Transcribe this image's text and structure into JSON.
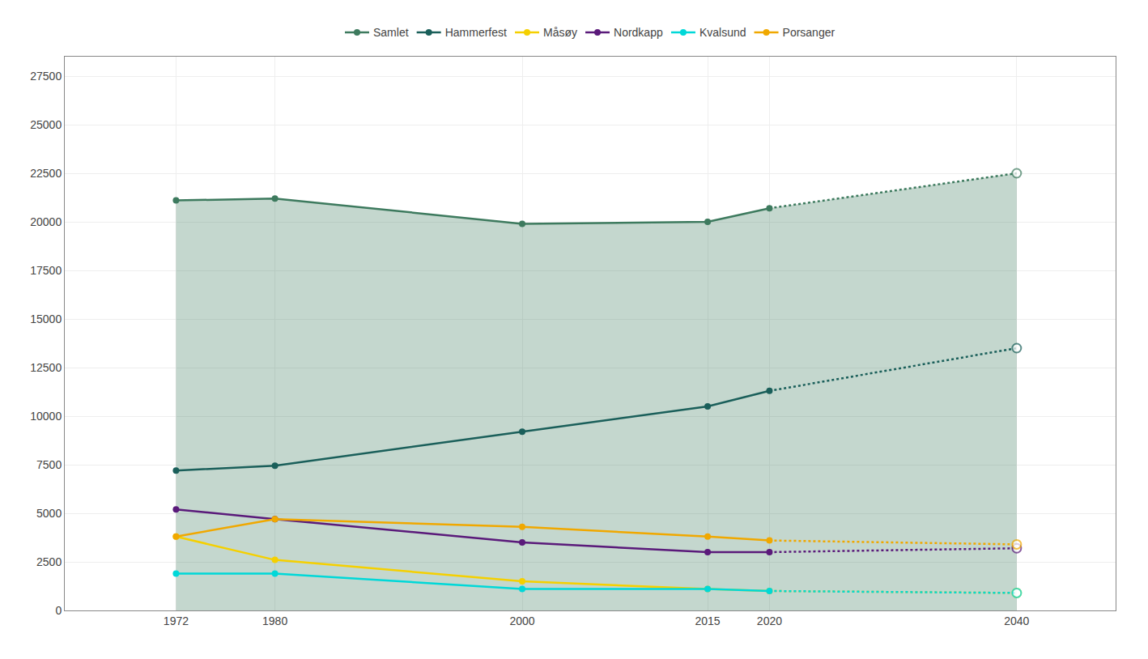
{
  "chart_data": {
    "type": "line",
    "x": [
      1972,
      1980,
      2000,
      2015,
      2020,
      2040
    ],
    "series": [
      {
        "name": "Samlet",
        "type": "area",
        "color": "#3d7a5e",
        "values": [
          21100,
          21200,
          19900,
          20000,
          20700,
          22500
        ]
      },
      {
        "name": "Hammerfest",
        "color": "#1a5f5a",
        "values": [
          7200,
          7450,
          9200,
          10500,
          11300,
          13500
        ]
      },
      {
        "name": "Måsøy",
        "color": "#f5d000",
        "values": [
          3800,
          2600,
          1500,
          1100,
          1000,
          900
        ]
      },
      {
        "name": "Nordkapp",
        "color": "#5a1a7a",
        "values": [
          5200,
          4700,
          3500,
          3000,
          3000,
          3200
        ]
      },
      {
        "name": "Kvalsund",
        "color": "#00d8d8",
        "values": [
          1900,
          1900,
          1100,
          1100,
          1000,
          900
        ]
      },
      {
        "name": "Porsanger",
        "color": "#f0a800",
        "values": [
          3800,
          4700,
          4300,
          3800,
          3600,
          3400
        ]
      }
    ],
    "xlim": [
      1963,
      2048
    ],
    "xticks": [
      1972,
      1980,
      2000,
      2015,
      2020,
      2040
    ],
    "ylim": [
      0,
      28500
    ],
    "yticks": [
      0,
      2500,
      5000,
      7500,
      10000,
      12500,
      15000,
      17500,
      20000,
      22500,
      25000,
      27500
    ],
    "grid": true,
    "legend": "top",
    "marker": "circle",
    "line_style": "solid"
  }
}
